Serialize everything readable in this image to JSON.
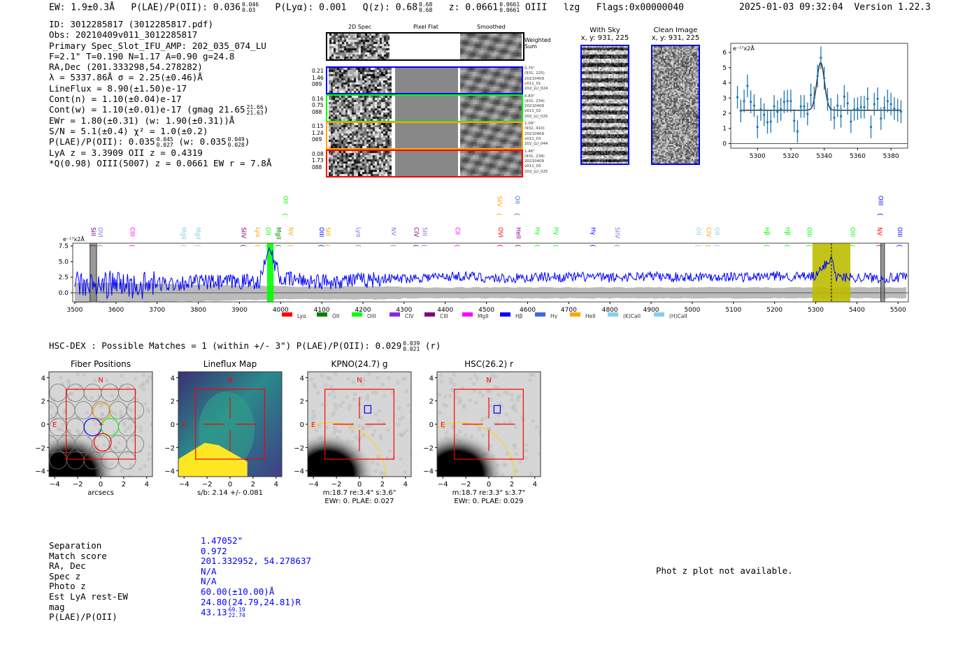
{
  "header": {
    "ew": "EW: 1.9±0.3Å",
    "plae_label": "P(LAE)/P(OII): 0.036",
    "plae_hi": "0.046",
    "plae_lo": "0.03",
    "plya": "P(Lyα): 0.001",
    "qz_label": "Q(z): 0.68",
    "qz_hi": "0.68",
    "qz_lo": "0.68",
    "z_label": "z: 0.0661",
    "z_hi": "0.0661",
    "z_lo": "0.0661",
    "line": "OIII",
    "lzg": "lzg",
    "flags": "Flags:0x00000040",
    "datetime": "2025-01-03 09:32:04",
    "version": "Version 1.22.3"
  },
  "info": {
    "id": "ID: 3012285817 (3012285817.pdf)",
    "obs": "Obs: 20210409v011_3012285817",
    "primary": "Primary Spec_Slot_IFU_AMP: 202_035_074_LU",
    "params": "F=2.1\"  T=0.190  N=1.17  A=0.90  g=24.8",
    "radec": "RA,Dec (201.333298,54.278282)",
    "lambda": "λ = 5337.86Å  σ = 2.25(±0.46)Å",
    "lineflux": "LineFlux = 8.90(±1.50)e-17",
    "cont_n": "Cont(n) = 1.10(±0.04)e-17",
    "cont_w": "Cont(w) = 1.10(±0.01)e-17 (gmag 21.65",
    "gmag_hi": "21.66",
    "gmag_lo": "21.63",
    "ewr": "EWr = 1.80(±0.31) (w: 1.90(±0.31))Å",
    "sn": "S/N = 5.1(±0.4)  χ² = 1.0(±0.2)",
    "plae": "P(LAE)/P(OII): 0.035",
    "plae_hi": "0.045",
    "plae_lo": "0.027",
    "plae_w": "(w: 0.035",
    "plae_w_hi": "0.049",
    "plae_w_lo": "0.028",
    "lya_z": "LyA z = 3.3909   OII z = 0.4319",
    "q_line": "*Q(0.98) OIII(5007) z = 0.0661  EW r = 7.8Å"
  },
  "spec2d": {
    "col_headers": [
      "2D Spec",
      "Pixel Flat",
      "Smoothed"
    ],
    "weighted_sum_label": "Weighted Sum",
    "rows": [
      {
        "color": "#0000ff",
        "left": [
          "0.21",
          "1.46",
          "089"
        ],
        "right": [
          "0.75\"",
          "(931, 225)",
          "20210409",
          "v011_01",
          "202_LU_024"
        ]
      },
      {
        "color": "#00ff00",
        "left": [
          "0.16",
          "0.75",
          "088"
        ],
        "right": [
          "0.83\"",
          "(931, 234)",
          "20210409",
          "v011_02",
          "202_LU_025"
        ]
      },
      {
        "color": "#ffa500",
        "left": [
          "0.15",
          "1.24",
          "069"
        ],
        "right": [
          "1.09\"",
          "(932, 410)",
          "20210409",
          "v011_03",
          "202_LU_044"
        ]
      },
      {
        "color": "#ff0000",
        "left": [
          "0.08",
          "1.73",
          "088"
        ],
        "right": [
          "1.46\"",
          "(931, 234)",
          "20210409",
          "v011_03",
          "202_LU_025"
        ]
      }
    ]
  },
  "cutouts": {
    "with_sky": {
      "title": "With Sky",
      "coords": "x, y: 931, 225"
    },
    "clean": {
      "title": "Clean Image",
      "coords": "x, y: 931, 225"
    }
  },
  "chart_data": [
    {
      "type": "scatter",
      "title": "",
      "ylabel": "e⁻¹⁷x2Å",
      "xlim": [
        5284,
        5390
      ],
      "ylim": [
        -0.3,
        6.6
      ],
      "xticks": [
        5300,
        5320,
        5340,
        5360,
        5380
      ],
      "yticks": [
        0,
        1,
        2,
        3,
        4,
        5,
        6
      ],
      "x": [
        5288,
        5290,
        5292,
        5294,
        5296,
        5298,
        5300,
        5302,
        5304,
        5306,
        5308,
        5310,
        5312,
        5314,
        5316,
        5318,
        5320,
        5322,
        5324,
        5326,
        5328,
        5330,
        5332,
        5334,
        5336,
        5338,
        5340,
        5342,
        5344,
        5346,
        5348,
        5350,
        5352,
        5354,
        5356,
        5358,
        5360,
        5362,
        5364,
        5366,
        5368,
        5370,
        5372,
        5374,
        5376,
        5378,
        5380,
        5382,
        5384,
        5386
      ],
      "y": [
        3.05,
        2.15,
        2.8,
        3.8,
        2.75,
        2.5,
        1.1,
        2.25,
        1.9,
        1.4,
        1.45,
        2.45,
        2.1,
        2.25,
        2.75,
        2.8,
        2.8,
        1.5,
        0.8,
        2.45,
        2.45,
        1.95,
        3.2,
        3.0,
        4.45,
        5.65,
        4.3,
        2.9,
        2.25,
        1.7,
        2.5,
        1.8,
        3.1,
        2.65,
        1.45,
        2.25,
        2.3,
        2.4,
        2.4,
        2.95,
        1.1,
        2.6,
        2.95,
        1.65,
        2.35,
        2.8,
        2.6,
        2.3,
        2.2,
        2.1
      ],
      "yerr": 0.75,
      "fit": {
        "continuum": 2.2,
        "amplitude": 3.15,
        "center": 5337.86,
        "sigma": 2.25
      },
      "point_color": "#1f77b4"
    },
    {
      "type": "line",
      "ylabel": "e⁻¹⁷x2Å",
      "xlim": [
        3495,
        5525
      ],
      "ylim": [
        -1.45,
        7.95
      ],
      "xticks": [
        3500,
        3600,
        3700,
        3800,
        3900,
        4000,
        4100,
        4200,
        4300,
        4400,
        4500,
        4600,
        4700,
        4800,
        4900,
        5000,
        5100,
        5200,
        5300,
        5400,
        5500
      ],
      "yticks": [
        "0.0",
        "2.5",
        "5.0",
        "7.5"
      ],
      "series": {
        "name": "flux",
        "color": "#0000ff",
        "x": [
          3500,
          3550,
          3600,
          3650,
          3700,
          3750,
          3800,
          3850,
          3900,
          3950,
          3972,
          4000,
          4050,
          4100,
          4150,
          4200,
          4250,
          4300,
          4350,
          4400,
          4450,
          4500,
          4550,
          4600,
          4650,
          4700,
          4750,
          4800,
          4850,
          4900,
          4950,
          5000,
          5050,
          5100,
          5150,
          5200,
          5250,
          5300,
          5338,
          5350,
          5400,
          5450,
          5500,
          5520
        ],
        "y": [
          1.5,
          1.0,
          1.5,
          1.0,
          1.4,
          1.6,
          1.7,
          1.6,
          1.8,
          1.9,
          7.2,
          2.2,
          2.0,
          1.8,
          2.0,
          2.0,
          2.3,
          2.3,
          2.5,
          2.6,
          2.7,
          2.4,
          2.3,
          2.4,
          2.6,
          2.5,
          2.6,
          2.4,
          2.6,
          2.7,
          2.5,
          2.6,
          2.6,
          2.6,
          2.5,
          2.7,
          2.6,
          2.6,
          5.8,
          2.5,
          2.5,
          2.4,
          2.4,
          2.5
        ]
      },
      "noise_band_color": "#bbbbbb",
      "shaded_regions": [
        {
          "x0": 3537,
          "x1": 3553,
          "color": "#808080"
        },
        {
          "x0": 3967,
          "x1": 3983,
          "color": "#00ff00"
        },
        {
          "x0": 5292,
          "x1": 5384,
          "color": "#bcbc00"
        },
        {
          "x0": 5458,
          "x1": 5467,
          "color": "#808080"
        }
      ],
      "marker_line": 5338,
      "line_labels": [
        {
          "name": "SiII",
          "w": 3545,
          "color": "#800080",
          "row": 0
        },
        {
          "name": "OVI",
          "w": 3562,
          "color": "#9370db",
          "row": 0
        },
        {
          "name": "CIII",
          "w": 3640,
          "color": "#ff00ff",
          "row": 0
        },
        {
          "name": "MgII",
          "w": 3765,
          "color": "#87ceeb",
          "row": 0
        },
        {
          "name": "MgII",
          "w": 3800,
          "color": "#87ceeb",
          "row": 0
        },
        {
          "name": "SiIV",
          "w": 3910,
          "color": "#800080",
          "row": 0
        },
        {
          "name": "Lyα",
          "w": 3945,
          "color": "#ffa500",
          "row": 0
        },
        {
          "name": "OII",
          "w": 3970,
          "color": "#00ff00",
          "row": 0
        },
        {
          "name": "MgII",
          "w": 3995,
          "color": "#008000",
          "row": 0
        },
        {
          "name": "NV",
          "w": 4025,
          "color": "#ffa500",
          "row": 0
        },
        {
          "name": "OIII",
          "w": 4100,
          "color": "#0000ff",
          "row": 0
        },
        {
          "name": "SiII",
          "w": 4115,
          "color": "#ffa500",
          "row": 0
        },
        {
          "name": "Lyα",
          "w": 4190,
          "color": "#9370db",
          "row": 0
        },
        {
          "name": "NV",
          "w": 4275,
          "color": "#9370db",
          "row": 0
        },
        {
          "name": "CIV",
          "w": 4330,
          "color": "#800080",
          "row": 0
        },
        {
          "name": "SiII",
          "w": 4350,
          "color": "#9370db",
          "row": 0
        },
        {
          "name": "CII",
          "w": 4430,
          "color": "#ff00ff",
          "row": 0
        },
        {
          "name": "OVI",
          "w": 4535,
          "color": "#ff0000",
          "row": 0
        },
        {
          "name": "HeII",
          "w": 4578,
          "color": "#800080",
          "row": 0
        },
        {
          "name": "Hγ",
          "w": 4625,
          "color": "#00ff00",
          "row": 0
        },
        {
          "name": "Hγ",
          "w": 4670,
          "color": "#00ff00",
          "row": 0
        },
        {
          "name": "Hγ",
          "w": 4760,
          "color": "#0000ff",
          "row": 0
        },
        {
          "name": "SiIV",
          "w": 4818,
          "color": "#9370db",
          "row": 0
        },
        {
          "name": "OII",
          "w": 5015,
          "color": "#87ceeb",
          "row": 0
        },
        {
          "name": "CIV",
          "w": 5040,
          "color": "#ffa500",
          "row": 0
        },
        {
          "name": "OII",
          "w": 5060,
          "color": "#87ceeb",
          "row": 0
        },
        {
          "name": "Hβ",
          "w": 5182,
          "color": "#00ff00",
          "row": 0
        },
        {
          "name": "Hβ",
          "w": 5232,
          "color": "#00ff00",
          "row": 0
        },
        {
          "name": "OIII",
          "w": 5285,
          "color": "#00ff00",
          "row": 0
        },
        {
          "name": "OIII",
          "w": 5390,
          "color": "#00ff00",
          "row": 0
        },
        {
          "name": "NV",
          "w": 5455,
          "color": "#ff0000",
          "row": 0
        },
        {
          "name": "OIII",
          "w": 5505,
          "color": "#0000ff",
          "row": 0
        },
        {
          "name": "OII",
          "w": 4012,
          "color": "#00ff00",
          "row": 1
        },
        {
          "name": "SiIV",
          "w": 4532,
          "color": "#ffa500",
          "row": 1
        },
        {
          "name": "OII",
          "w": 4575,
          "color": "#4169e1",
          "row": 1
        },
        {
          "name": "OIII",
          "w": 5458,
          "color": "#0000ff",
          "row": 1
        }
      ],
      "legend": [
        {
          "name": "Lyα",
          "color": "#ff0000"
        },
        {
          "name": "OII",
          "color": "#008000"
        },
        {
          "name": "OIII",
          "color": "#00ff00"
        },
        {
          "name": "CIV",
          "color": "#8a2be2"
        },
        {
          "name": "CIII",
          "color": "#800080"
        },
        {
          "name": "MgII",
          "color": "#ff00ff"
        },
        {
          "name": "Hβ",
          "color": "#0000ff"
        },
        {
          "name": "Hγ",
          "color": "#4169e1"
        },
        {
          "name": "HeII",
          "color": "#ffa500"
        },
        {
          "name": "(K)CaII",
          "color": "#87ceeb"
        },
        {
          "name": "(H)CaII",
          "color": "#87ceeb"
        }
      ],
      "legend_placement": "bottom"
    }
  ],
  "hsc": {
    "title": "HSC-DEX : Possible Matches = 1 (within +/- 3\")  P(LAE)/P(OII): 0.029",
    "plae_hi": "0.039",
    "plae_lo": "0.021",
    "band": "(r)",
    "ticks": [
      "−4",
      "−2",
      "0",
      "2",
      "4"
    ],
    "compass_n": "N",
    "compass_e": "E",
    "panels": [
      {
        "title": "Fiber Positions",
        "caption1": "arcsecs",
        "caption2": ""
      },
      {
        "title": "Lineflux Map",
        "caption1": "s/b: 2.14 +/- 0.081",
        "caption2": ""
      },
      {
        "title": "KPNO(24.7) g",
        "caption1": "m:18.7  re:3.4\"  s:3.6\"",
        "caption2": "EWr: 0, PLAE: 0.027"
      },
      {
        "title": "HSC(26.2) r",
        "caption1": "m:18.7  re:3.3\"  s:3.7\"",
        "caption2": "EWr: 0, PLAE: 0.029"
      }
    ]
  },
  "match_table": {
    "labels": [
      "Separation",
      "Match score",
      "RA, Dec",
      "Spec z",
      "Photo z",
      "Est LyA rest-EW",
      "mag",
      "P(LAE)/P(OII)"
    ],
    "values": [
      "1.47052\"",
      "0.972",
      "201.332952, 54.278637",
      "N/A",
      "N/A",
      "60.00(±10.00)Å",
      "24.80(24.79,24.81)R",
      "43.13"
    ],
    "plae_hi": "69.19",
    "plae_lo": "22.74"
  },
  "photz_message": "Phot z plot not available."
}
